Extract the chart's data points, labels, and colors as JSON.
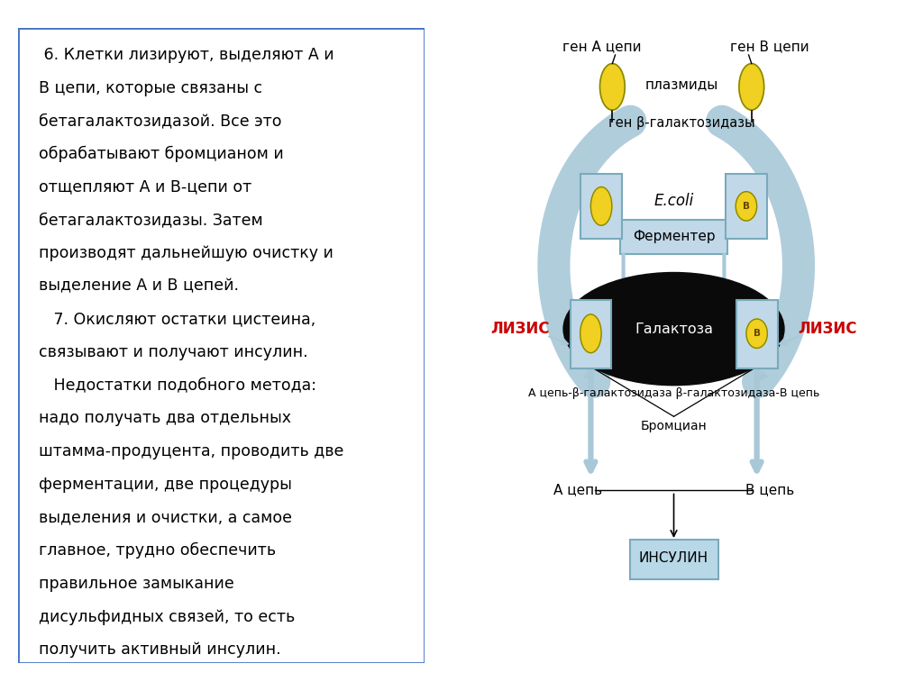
{
  "bg_color": "#ffffff",
  "text_box_border": "#4472c4",
  "text_content_lines": [
    " 6. Клетки лизируют, выделяют А и",
    "В цепи, которые связаны с",
    "бетагалактозидазой. Все это",
    "обрабатывают бромцианом и",
    "отщепляют А и В-цепи от",
    "бетагалактозидазы. Затем",
    "производят дальнейшую очистку и",
    "выделение А и В цепей.",
    "   7. Окисляют остатки цистеина,",
    "связывают и получают инсулин.",
    "   Недостатки подобного метода:",
    "надо получать два отдельных",
    "штамма-продуцента, проводить две",
    "ферментации, две процедуры",
    "выделения и очистки, а самое",
    "главное, трудно обеспечить",
    "правильное замыкание",
    "дисульфидных связей, то есть",
    "получить активный инсулин."
  ],
  "label_gen_A": "ген А цепи",
  "label_gen_B": "ген В цепи",
  "label_plazmidy": "плазмиды",
  "label_gen_beta": "ген β-галактозидазы",
  "label_ecoli": "E.coli",
  "label_ferment": "Ферментер",
  "label_galaktoza": "Галактоза",
  "label_lizis_L": "ЛИЗИС",
  "label_lizis_R": "ЛИЗИС",
  "label_A_beta": "А цепь-β-галактозидаза β-галактозидаза-В цепь",
  "label_bromcian": "Бромциан",
  "label_A_cep": "А цепь",
  "label_B_cep": "В цепь",
  "label_insulin": "ИНСУЛИН",
  "arrow_color": "#a8c8d8",
  "ellipse_black": "#0a0a0a",
  "yellow_color": "#f0d020",
  "cell_box_color": "#c0d8e8",
  "insulin_box_color": "#b8d8e8",
  "red_text_color": "#cc0000",
  "black_text_color": "#000000",
  "border_color": "#7aaabb"
}
